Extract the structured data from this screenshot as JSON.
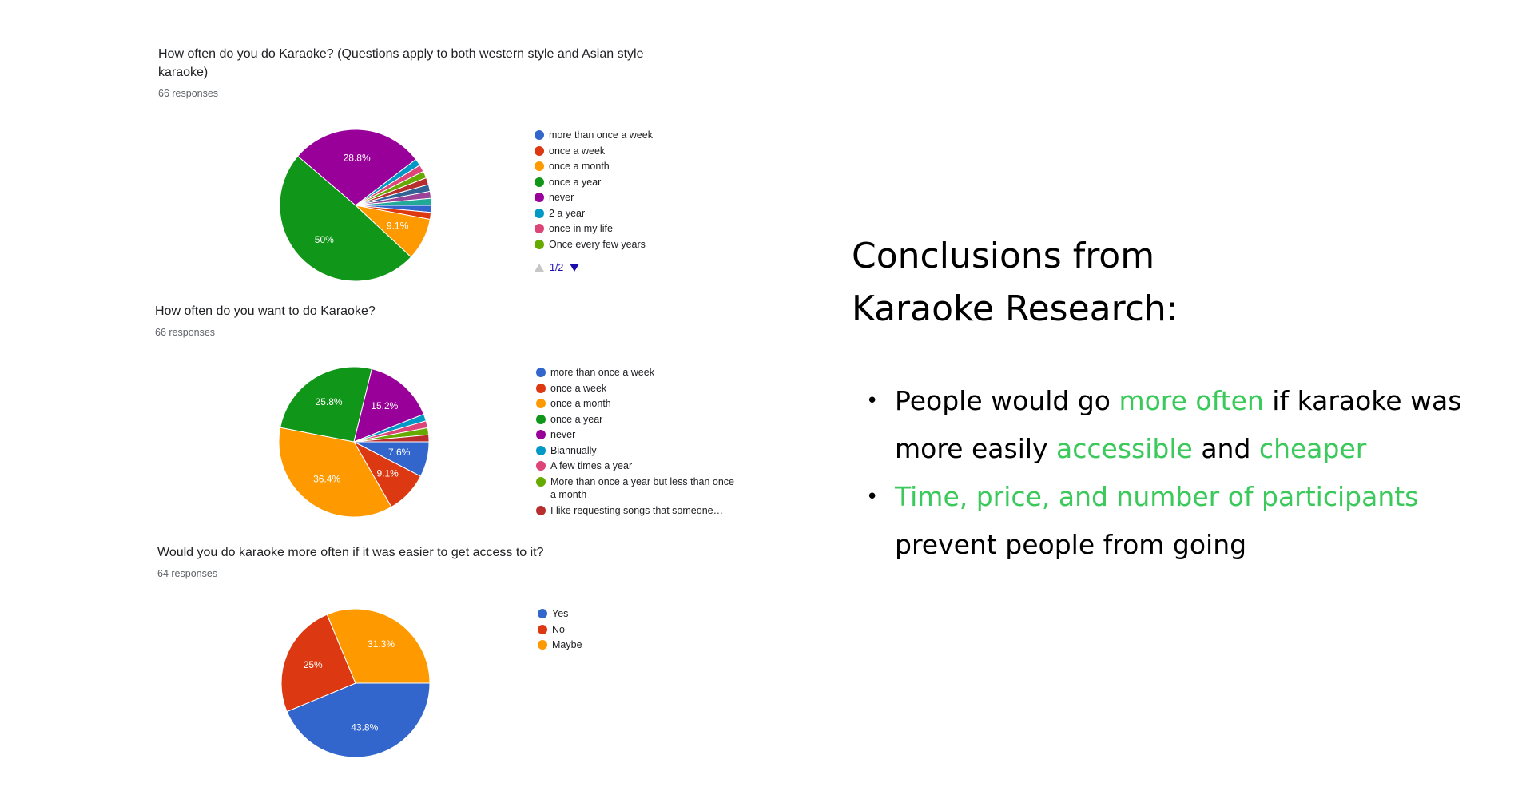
{
  "charts_meta": [
    {
      "question": "How often do you do Karaoke? (Questions apply to both western style and Asian style karaoke)",
      "responses": "66 responses"
    },
    {
      "question": "How often do you want to do Karaoke?",
      "responses": "66 responses"
    },
    {
      "question": "Would you do karaoke more often if it was easier to get access to it?",
      "responses": "64 responses"
    }
  ],
  "legend_pager": {
    "text": "1/2"
  },
  "chart_data": [
    {
      "type": "pie",
      "title": "How often do you do Karaoke? (Questions apply to both western style and Asian style karaoke)",
      "slices": [
        {
          "label": "more than once a week",
          "value": 1.5,
          "color": "#3366cc",
          "shown": ""
        },
        {
          "label": "once a week",
          "value": 1.5,
          "color": "#dc3912",
          "shown": ""
        },
        {
          "label": "once a month",
          "value": 9.1,
          "color": "#ff9900",
          "shown": "9.1%"
        },
        {
          "label": "once a year",
          "value": 50,
          "color": "#109618",
          "shown": "50%"
        },
        {
          "label": "never",
          "value": 28.8,
          "color": "#990099",
          "shown": "28.8%"
        },
        {
          "label": "2 a year",
          "value": 1.5,
          "color": "#0099c6",
          "shown": ""
        },
        {
          "label": "once in my life",
          "value": 1.5,
          "color": "#dd4477",
          "shown": ""
        },
        {
          "label": "Once every few years",
          "value": 1.5,
          "color": "#66aa00",
          "shown": ""
        },
        {
          "label": "",
          "value": 1.5,
          "color": "#b82e2e",
          "shown": ""
        },
        {
          "label": "",
          "value": 1.5,
          "color": "#316395",
          "shown": ""
        },
        {
          "label": "",
          "value": 1.5,
          "color": "#994499",
          "shown": ""
        },
        {
          "label": "",
          "value": 1.5,
          "color": "#22aa99",
          "shown": ""
        }
      ],
      "legend_count": 8
    },
    {
      "type": "pie",
      "title": "How often do you want to do Karaoke?",
      "slices": [
        {
          "label": "more than once a week",
          "value": 7.6,
          "color": "#3366cc",
          "shown": "7.6%"
        },
        {
          "label": "once a week",
          "value": 9.1,
          "color": "#dc3912",
          "shown": "9.1%"
        },
        {
          "label": "once a month",
          "value": 36.4,
          "color": "#ff9900",
          "shown": "36.4%"
        },
        {
          "label": "once a year",
          "value": 25.8,
          "color": "#109618",
          "shown": "25.8%"
        },
        {
          "label": "never",
          "value": 15.2,
          "color": "#990099",
          "shown": "15.2%"
        },
        {
          "label": "Biannually",
          "value": 1.5,
          "color": "#0099c6",
          "shown": ""
        },
        {
          "label": "A few times a year",
          "value": 1.5,
          "color": "#dd4477",
          "shown": ""
        },
        {
          "label": "More than once a year but less than once a month",
          "value": 1.5,
          "color": "#66aa00",
          "shown": ""
        },
        {
          "label": "I like requesting songs that someone…",
          "value": 1.5,
          "color": "#b82e2e",
          "shown": ""
        }
      ],
      "legend_count": 9
    },
    {
      "type": "pie",
      "title": "Would you do karaoke more often if it was easier to get access to it?",
      "slices": [
        {
          "label": "Yes",
          "value": 43.8,
          "color": "#3366cc",
          "shown": "43.8%"
        },
        {
          "label": "No",
          "value": 25,
          "color": "#dc3912",
          "shown": "25%"
        },
        {
          "label": "Maybe",
          "value": 31.3,
          "color": "#ff9900",
          "shown": "31.3%"
        }
      ],
      "legend_count": 3
    }
  ],
  "conclusion": {
    "title_line1": "Conclusions from",
    "title_line2": "Karaoke Research:",
    "b1_part1": "People would go ",
    "b1_hl1": "more often",
    "b1_part2": " if karaoke was more easily ",
    "b1_hl2": "accessible",
    "b1_part3": " and ",
    "b1_hl3": "cheaper",
    "b2_hl": "Time, price, and number of participants",
    "b2_part": " prevent people from going",
    "highlight_color": "#3cc95b"
  }
}
